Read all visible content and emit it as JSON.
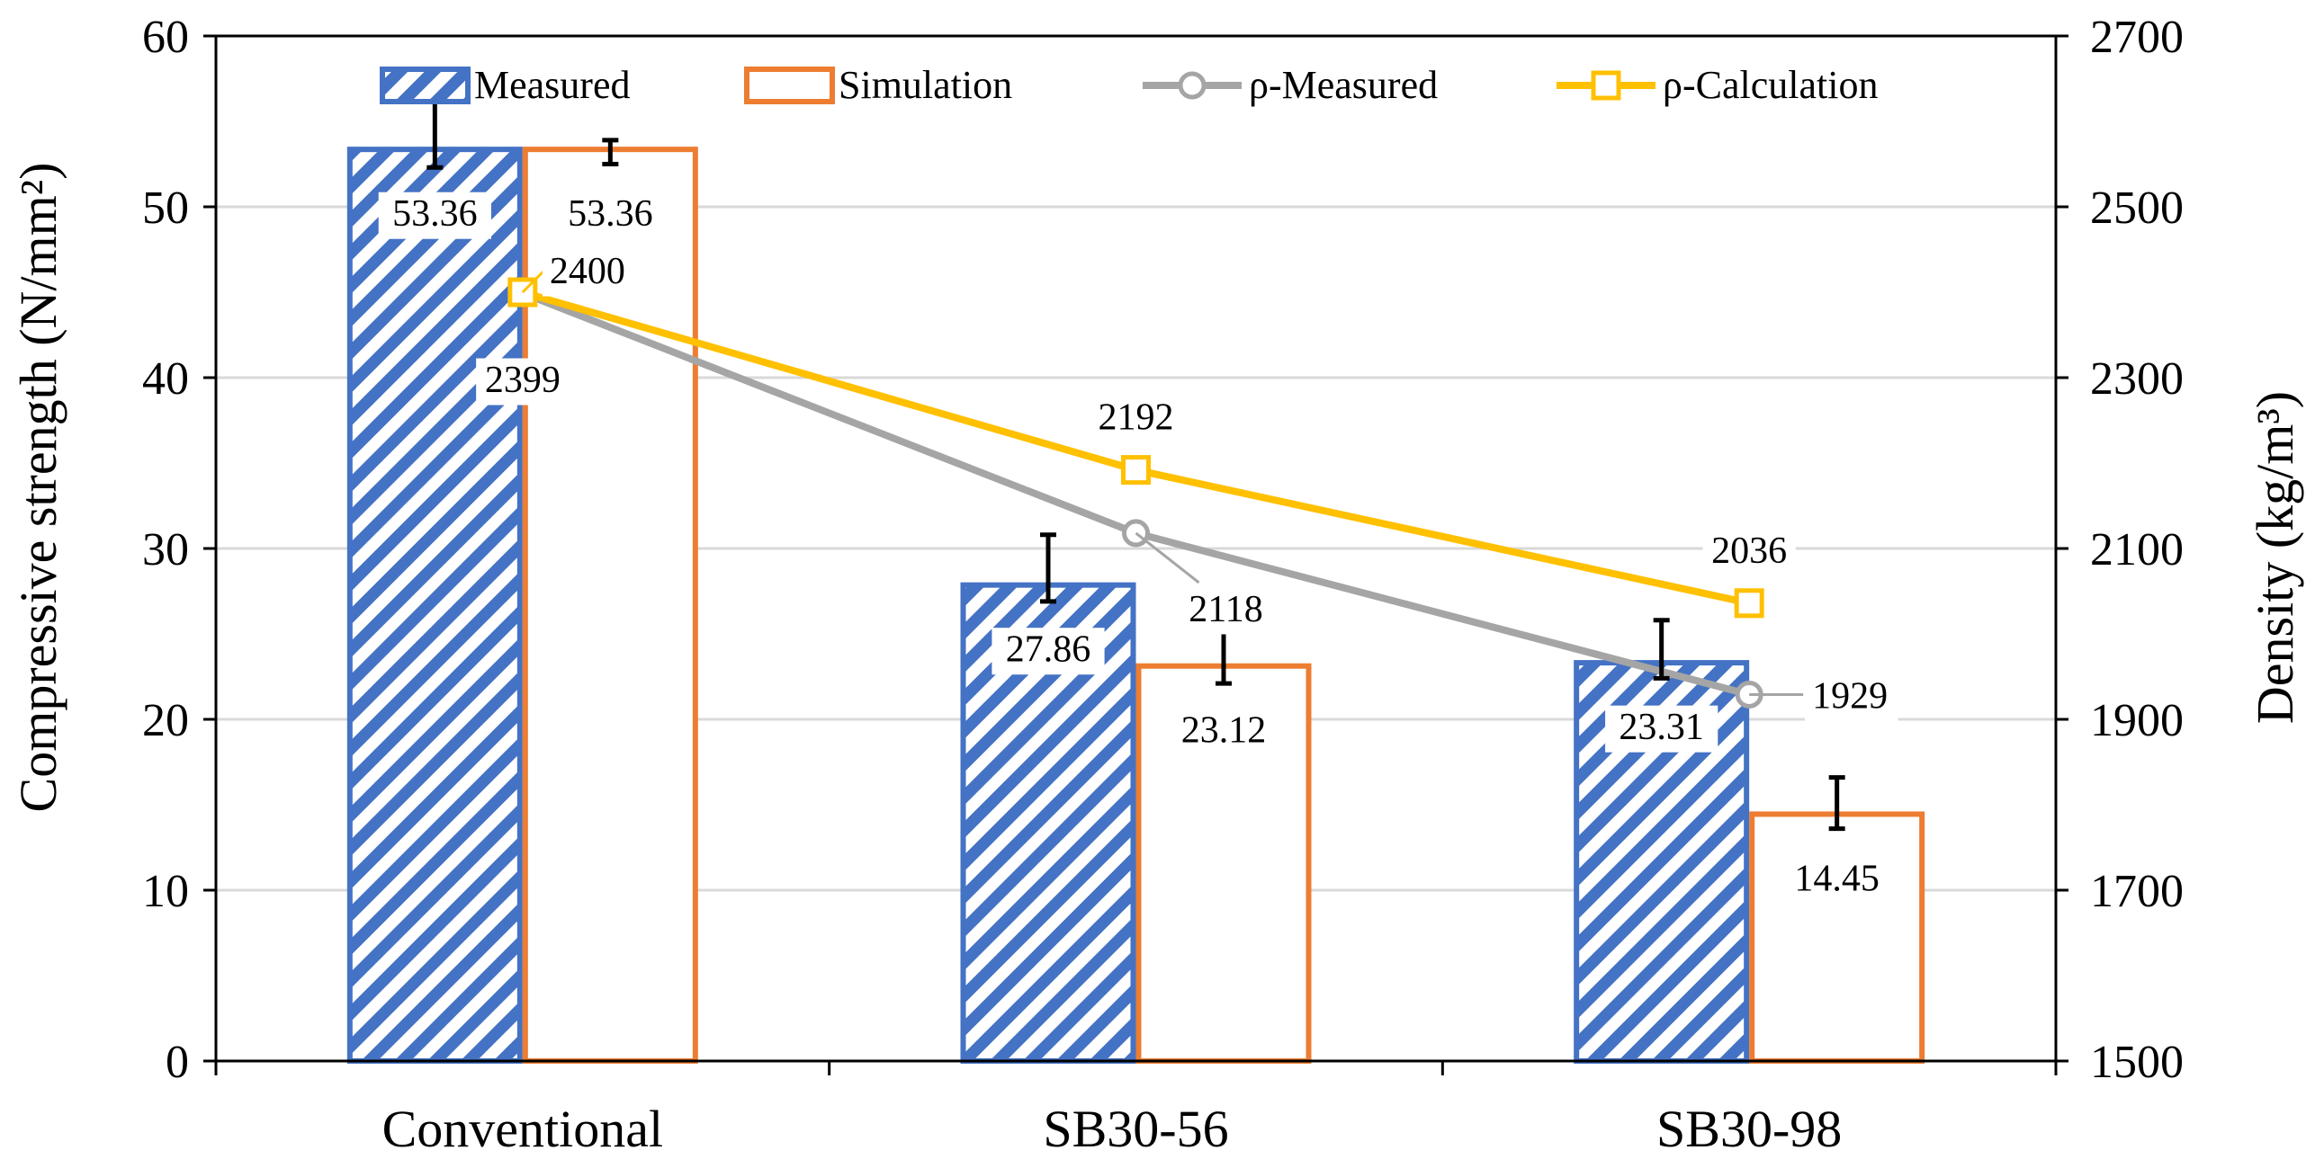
{
  "chart_data": {
    "type": "bar",
    "title": "",
    "categories": [
      "Conventional",
      "SB30-56",
      "SB30-98"
    ],
    "xlabel": "",
    "ylabel": "Compressive strength (N/mm²)",
    "y2label": "Density (kg/m³)",
    "ylim": [
      0,
      60
    ],
    "y2lim": [
      1500,
      2700
    ],
    "yticks": [
      0,
      10,
      20,
      30,
      40,
      50,
      60
    ],
    "y2ticks": [
      1500,
      1700,
      1900,
      2100,
      2300,
      2500,
      2700
    ],
    "grid": true,
    "legend": "top",
    "series": [
      {
        "name": "Measured",
        "kind": "bar",
        "axis": "left",
        "color": "#4472C4",
        "pattern": "diagonal-hatch",
        "values": [
          53.36,
          27.86,
          23.31
        ],
        "labels": [
          "53.36",
          "27.86",
          "23.31"
        ],
        "error_low": [
          52.3,
          26.9,
          22.4
        ],
        "error_high": [
          56.2,
          30.8,
          25.8
        ]
      },
      {
        "name": "Simulation",
        "kind": "bar",
        "axis": "left",
        "color": "#ED7D31",
        "pattern": "none",
        "values": [
          53.36,
          23.12,
          14.45
        ],
        "labels": [
          "53.36",
          "23.12",
          "14.45"
        ],
        "error_low": [
          52.5,
          22.1,
          13.6
        ],
        "error_high": [
          53.9,
          25.2,
          16.6
        ]
      },
      {
        "name": "ρ-Measured",
        "kind": "line",
        "axis": "right",
        "color": "#A5A5A5",
        "marker": "circle",
        "values": [
          2399,
          2118,
          1929
        ],
        "labels": [
          "2399",
          "2118",
          "1929"
        ]
      },
      {
        "name": "ρ-Calculation",
        "kind": "line",
        "axis": "right",
        "color": "#FFC000",
        "marker": "square",
        "values": [
          2400,
          2192,
          2036
        ],
        "labels": [
          "2400",
          "2192",
          "2036"
        ]
      }
    ]
  }
}
